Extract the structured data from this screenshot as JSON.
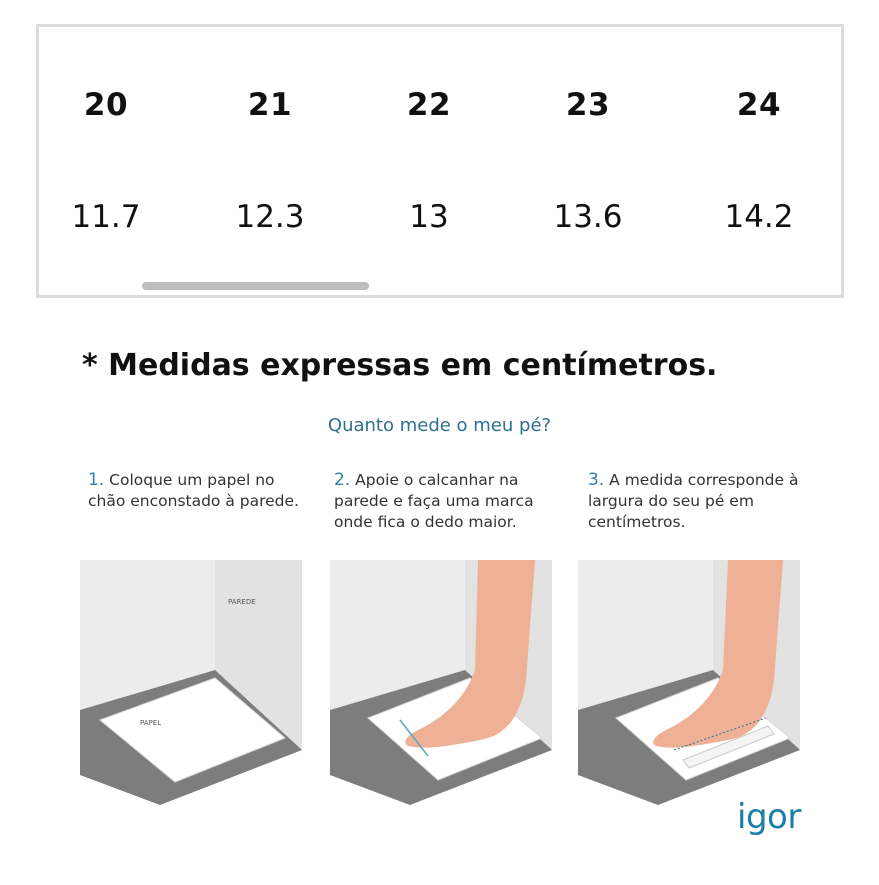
{
  "size_table": {
    "columns": [
      {
        "size": "20",
        "cm": "11.7"
      },
      {
        "size": "21",
        "cm": "12.3"
      },
      {
        "size": "22",
        "cm": "13"
      },
      {
        "size": "23",
        "cm": "13.6"
      },
      {
        "size": "24",
        "cm": "14.2"
      }
    ]
  },
  "note": "* Medidas expressas em centímetros.",
  "guide": {
    "title": "Quanto mede o meu pé?",
    "steps": [
      {
        "num": "1.",
        "text": "Coloque um papel no chão enconstado à parede."
      },
      {
        "num": "2.",
        "text": "Apoie o calcanhar na parede e faça uma marca onde fica o dedo maior."
      },
      {
        "num": "3.",
        "text": "A medida corresponde à largura do seu pé em centímetros."
      }
    ],
    "labels": {
      "wall": "PAREDE",
      "paper": "PAPEL"
    }
  },
  "brand": {
    "logo": "igor",
    "color": "#1a7ea6"
  }
}
